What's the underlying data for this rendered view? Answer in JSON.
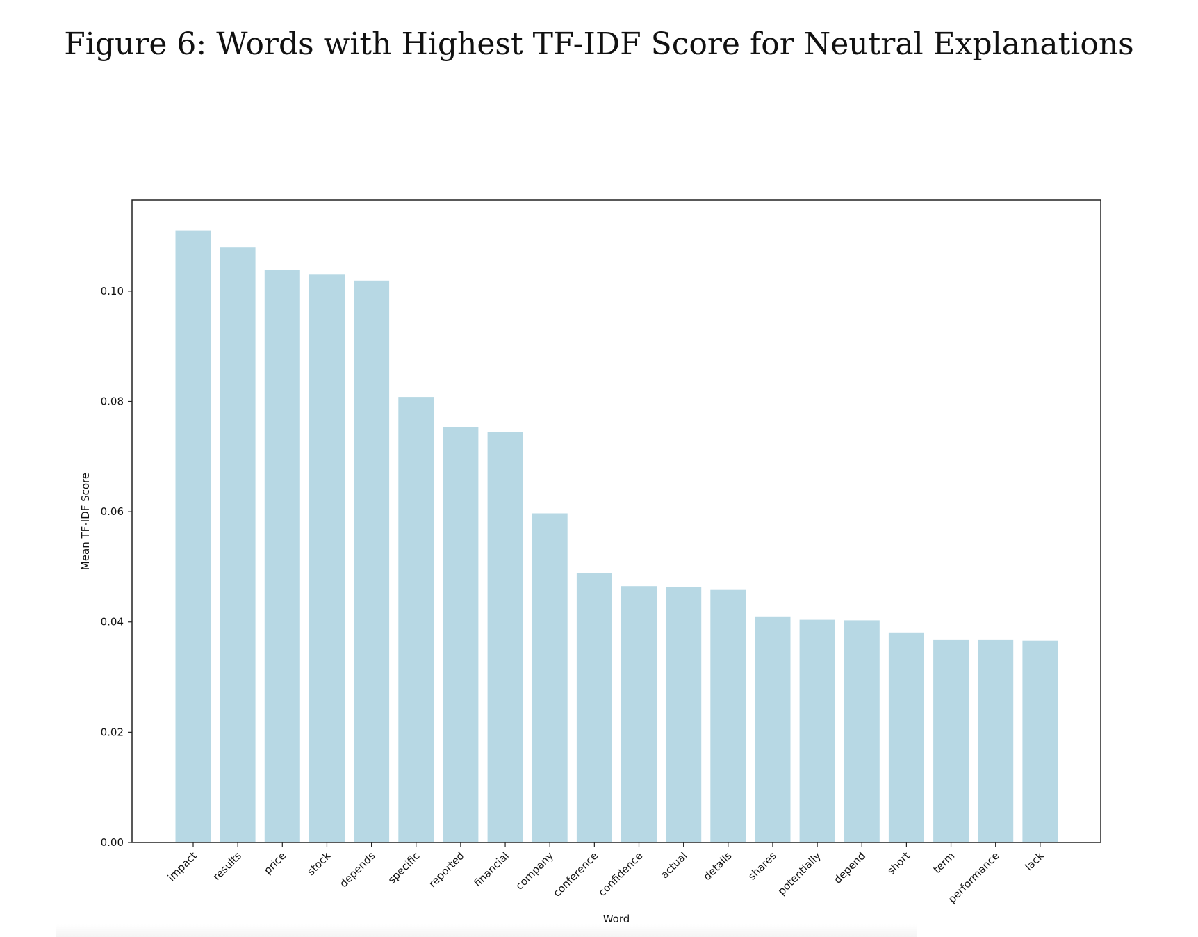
{
  "figure": {
    "title": "Figure 6: Words with Highest TF-IDF Score for Neutral Explanations"
  },
  "colors": {
    "bar": "#b7d8e4",
    "axis": "#222222"
  },
  "chart_data": {
    "type": "bar",
    "title": "",
    "xlabel": "Word",
    "ylabel": "Mean TF-IDF Score",
    "ylim": [
      0,
      0.1165
    ],
    "yticks": [
      "0.00",
      "0.02",
      "0.04",
      "0.06",
      "0.08",
      "0.10"
    ],
    "categories": [
      "impact",
      "results",
      "price",
      "stock",
      "depends",
      "specific",
      "reported",
      "financial",
      "company",
      "conference",
      "confidence",
      "actual",
      "details",
      "shares",
      "potentially",
      "depend",
      "short",
      "term",
      "performance",
      "lack"
    ],
    "values": [
      0.111,
      0.1079,
      0.1038,
      0.1031,
      0.1019,
      0.0808,
      0.0753,
      0.0745,
      0.0597,
      0.0489,
      0.0465,
      0.0464,
      0.0458,
      0.041,
      0.0404,
      0.0403,
      0.0381,
      0.0367,
      0.0367,
      0.0366
    ],
    "grid": false,
    "legend": "none"
  }
}
